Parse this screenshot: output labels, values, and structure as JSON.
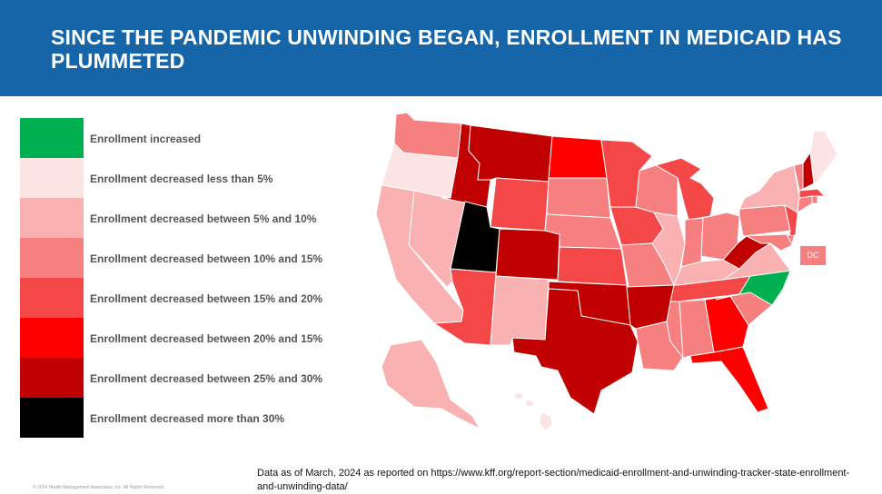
{
  "title": "SINCE THE PANDEMIC UNWINDING BEGAN, ENROLLMENT IN MEDICAID HAS PLUMMETED",
  "legend": [
    {
      "label": "Enrollment increased",
      "color": "#00b050"
    },
    {
      "label": "Enrollment decreased less than 5%",
      "color": "#fde4e4"
    },
    {
      "label": "Enrollment decreased between 5% and 10%",
      "color": "#f9b1b1"
    },
    {
      "label": "Enrollment decreased between 10% and 15%",
      "color": "#f67f7f"
    },
    {
      "label": "Enrollment decreased between 15% and 20%",
      "color": "#f44848"
    },
    {
      "label": "Enrollment decreased between 20% and 15%",
      "color": "#ff0000"
    },
    {
      "label": "Enrollment decreased between 25% and 30%",
      "color": "#c00000"
    },
    {
      "label": "Enrollment decreased more than 30%",
      "color": "#000000"
    }
  ],
  "map": {
    "states": [
      {
        "id": "WA",
        "category": 3
      },
      {
        "id": "OR",
        "category": 1
      },
      {
        "id": "CA",
        "category": 2
      },
      {
        "id": "NV",
        "category": 2
      },
      {
        "id": "ID",
        "category": 6
      },
      {
        "id": "MT",
        "category": 6
      },
      {
        "id": "WY",
        "category": 4
      },
      {
        "id": "UT",
        "category": 7
      },
      {
        "id": "AZ",
        "category": 4
      },
      {
        "id": "CO",
        "category": 6
      },
      {
        "id": "NM",
        "category": 2
      },
      {
        "id": "ND",
        "category": 5
      },
      {
        "id": "SD",
        "category": 3
      },
      {
        "id": "NE",
        "category": 3
      },
      {
        "id": "KS",
        "category": 4
      },
      {
        "id": "OK",
        "category": 6
      },
      {
        "id": "TX",
        "category": 6
      },
      {
        "id": "MN",
        "category": 4
      },
      {
        "id": "IA",
        "category": 4
      },
      {
        "id": "MO",
        "category": 3
      },
      {
        "id": "AR",
        "category": 6
      },
      {
        "id": "LA",
        "category": 3
      },
      {
        "id": "WI",
        "category": 3
      },
      {
        "id": "IL",
        "category": 2
      },
      {
        "id": "MI",
        "category": 4
      },
      {
        "id": "IN",
        "category": 3
      },
      {
        "id": "OH",
        "category": 3
      },
      {
        "id": "KY",
        "category": 2
      },
      {
        "id": "TN",
        "category": 4
      },
      {
        "id": "MS",
        "category": 3
      },
      {
        "id": "AL",
        "category": 3
      },
      {
        "id": "GA",
        "category": 5
      },
      {
        "id": "FL",
        "category": 5
      },
      {
        "id": "SC",
        "category": 3
      },
      {
        "id": "NC",
        "category": 0
      },
      {
        "id": "VA",
        "category": 2
      },
      {
        "id": "WV",
        "category": 6
      },
      {
        "id": "PA",
        "category": 3
      },
      {
        "id": "NY",
        "category": 2
      },
      {
        "id": "NJ",
        "category": 4
      },
      {
        "id": "DE",
        "category": 3
      },
      {
        "id": "MD",
        "category": 3
      },
      {
        "id": "CT",
        "category": 3
      },
      {
        "id": "RI",
        "category": 3
      },
      {
        "id": "MA",
        "category": 4
      },
      {
        "id": "VT",
        "category": 3
      },
      {
        "id": "NH",
        "category": 6
      },
      {
        "id": "ME",
        "category": 1
      },
      {
        "id": "AK",
        "category": 2
      },
      {
        "id": "HI",
        "category": 1
      }
    ],
    "dc_label": "DC",
    "dc_category": 3
  },
  "source": "Data as of March, 2024 as reported on https://www.kff.org/report-section/medicaid-enrollment-and-unwinding-tracker-state-enrollment-and-unwinding-data/",
  "copyright": "© 2024 Health Management Associates, Inc. All Rights Reserved."
}
